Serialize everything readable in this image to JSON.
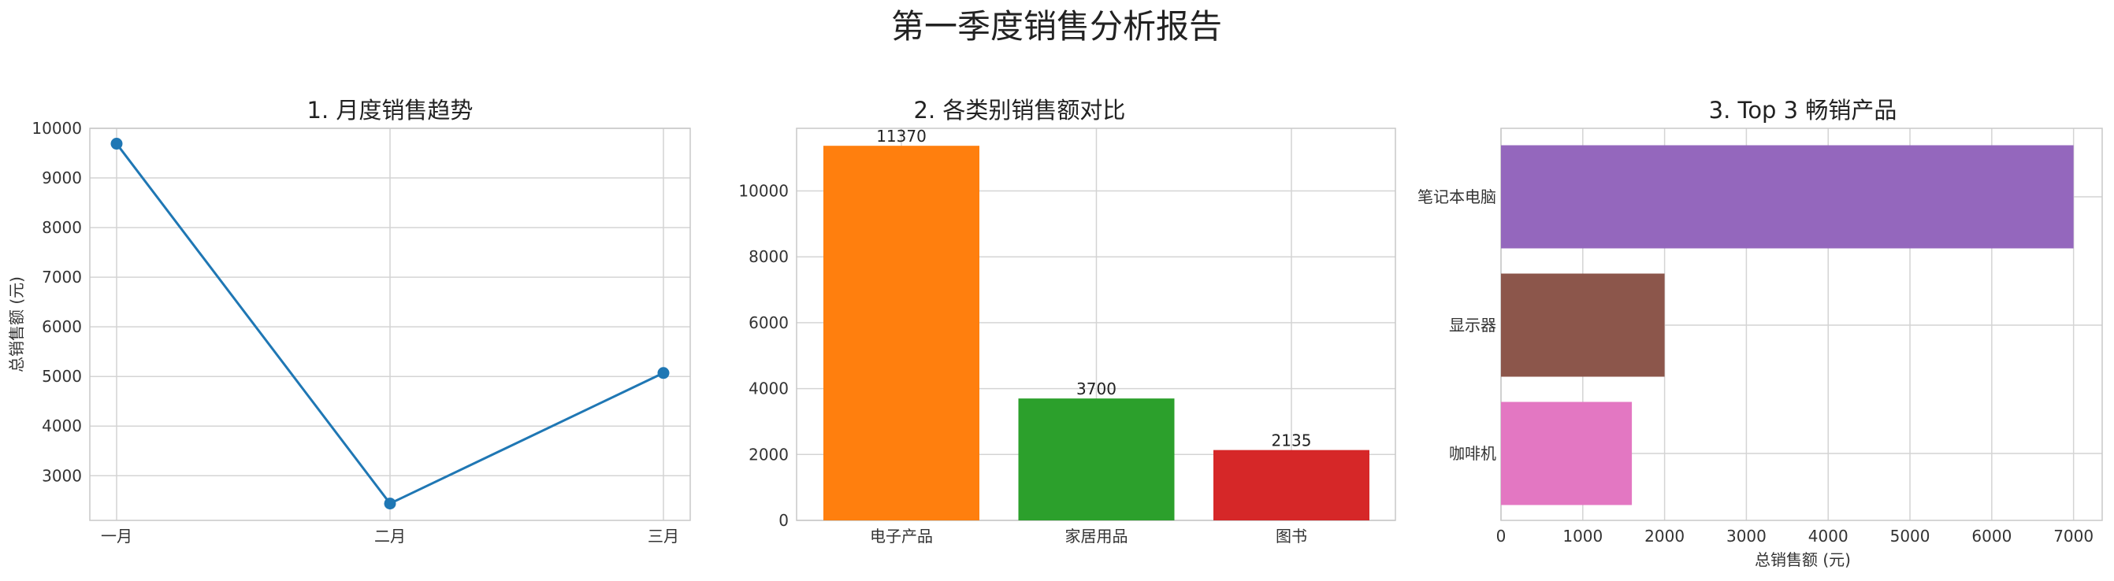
{
  "figure": {
    "title": "第一季度销售分析报告"
  },
  "chart_data": [
    {
      "type": "line",
      "title": "1. 月度销售趋势",
      "xlabel": "",
      "ylabel": "总销售额 (元)",
      "categories": [
        "一月",
        "二月",
        "三月"
      ],
      "series": [
        {
          "values": [
            9690,
            2440,
            5070
          ],
          "color": "#1f77b4"
        }
      ],
      "ylim": [
        2100,
        10000
      ],
      "yticks": [
        3000,
        4000,
        5000,
        6000,
        7000,
        8000,
        9000,
        10000
      ],
      "grid": true,
      "legend": null
    },
    {
      "type": "bar",
      "title": "2. 各类别销售额对比",
      "xlabel": "",
      "ylabel": "",
      "categories": [
        "电子产品",
        "家居用品",
        "图书"
      ],
      "values": [
        11370,
        3700,
        2135
      ],
      "data_labels": [
        "11370",
        "3700",
        "2135"
      ],
      "colors": [
        "#ff7f0e",
        "#2ca02c",
        "#d62728"
      ],
      "ylim": [
        0,
        11900
      ],
      "yticks": [
        0,
        2000,
        4000,
        6000,
        8000,
        10000
      ],
      "grid": true,
      "legend": null
    },
    {
      "type": "bar",
      "orientation": "horizontal",
      "title": "3. Top 3 畅销产品",
      "xlabel": "总销售额 (元)",
      "ylabel": "",
      "categories": [
        "笔记本电脑",
        "显示器",
        "咖啡机"
      ],
      "values": [
        7000,
        2000,
        1600
      ],
      "colors": [
        "#9467bd",
        "#8c564b",
        "#e377c2"
      ],
      "xlim": [
        0,
        7350
      ],
      "xticks": [
        0,
        1000,
        2000,
        3000,
        4000,
        5000,
        6000,
        7000
      ],
      "grid": true,
      "legend": null
    }
  ]
}
